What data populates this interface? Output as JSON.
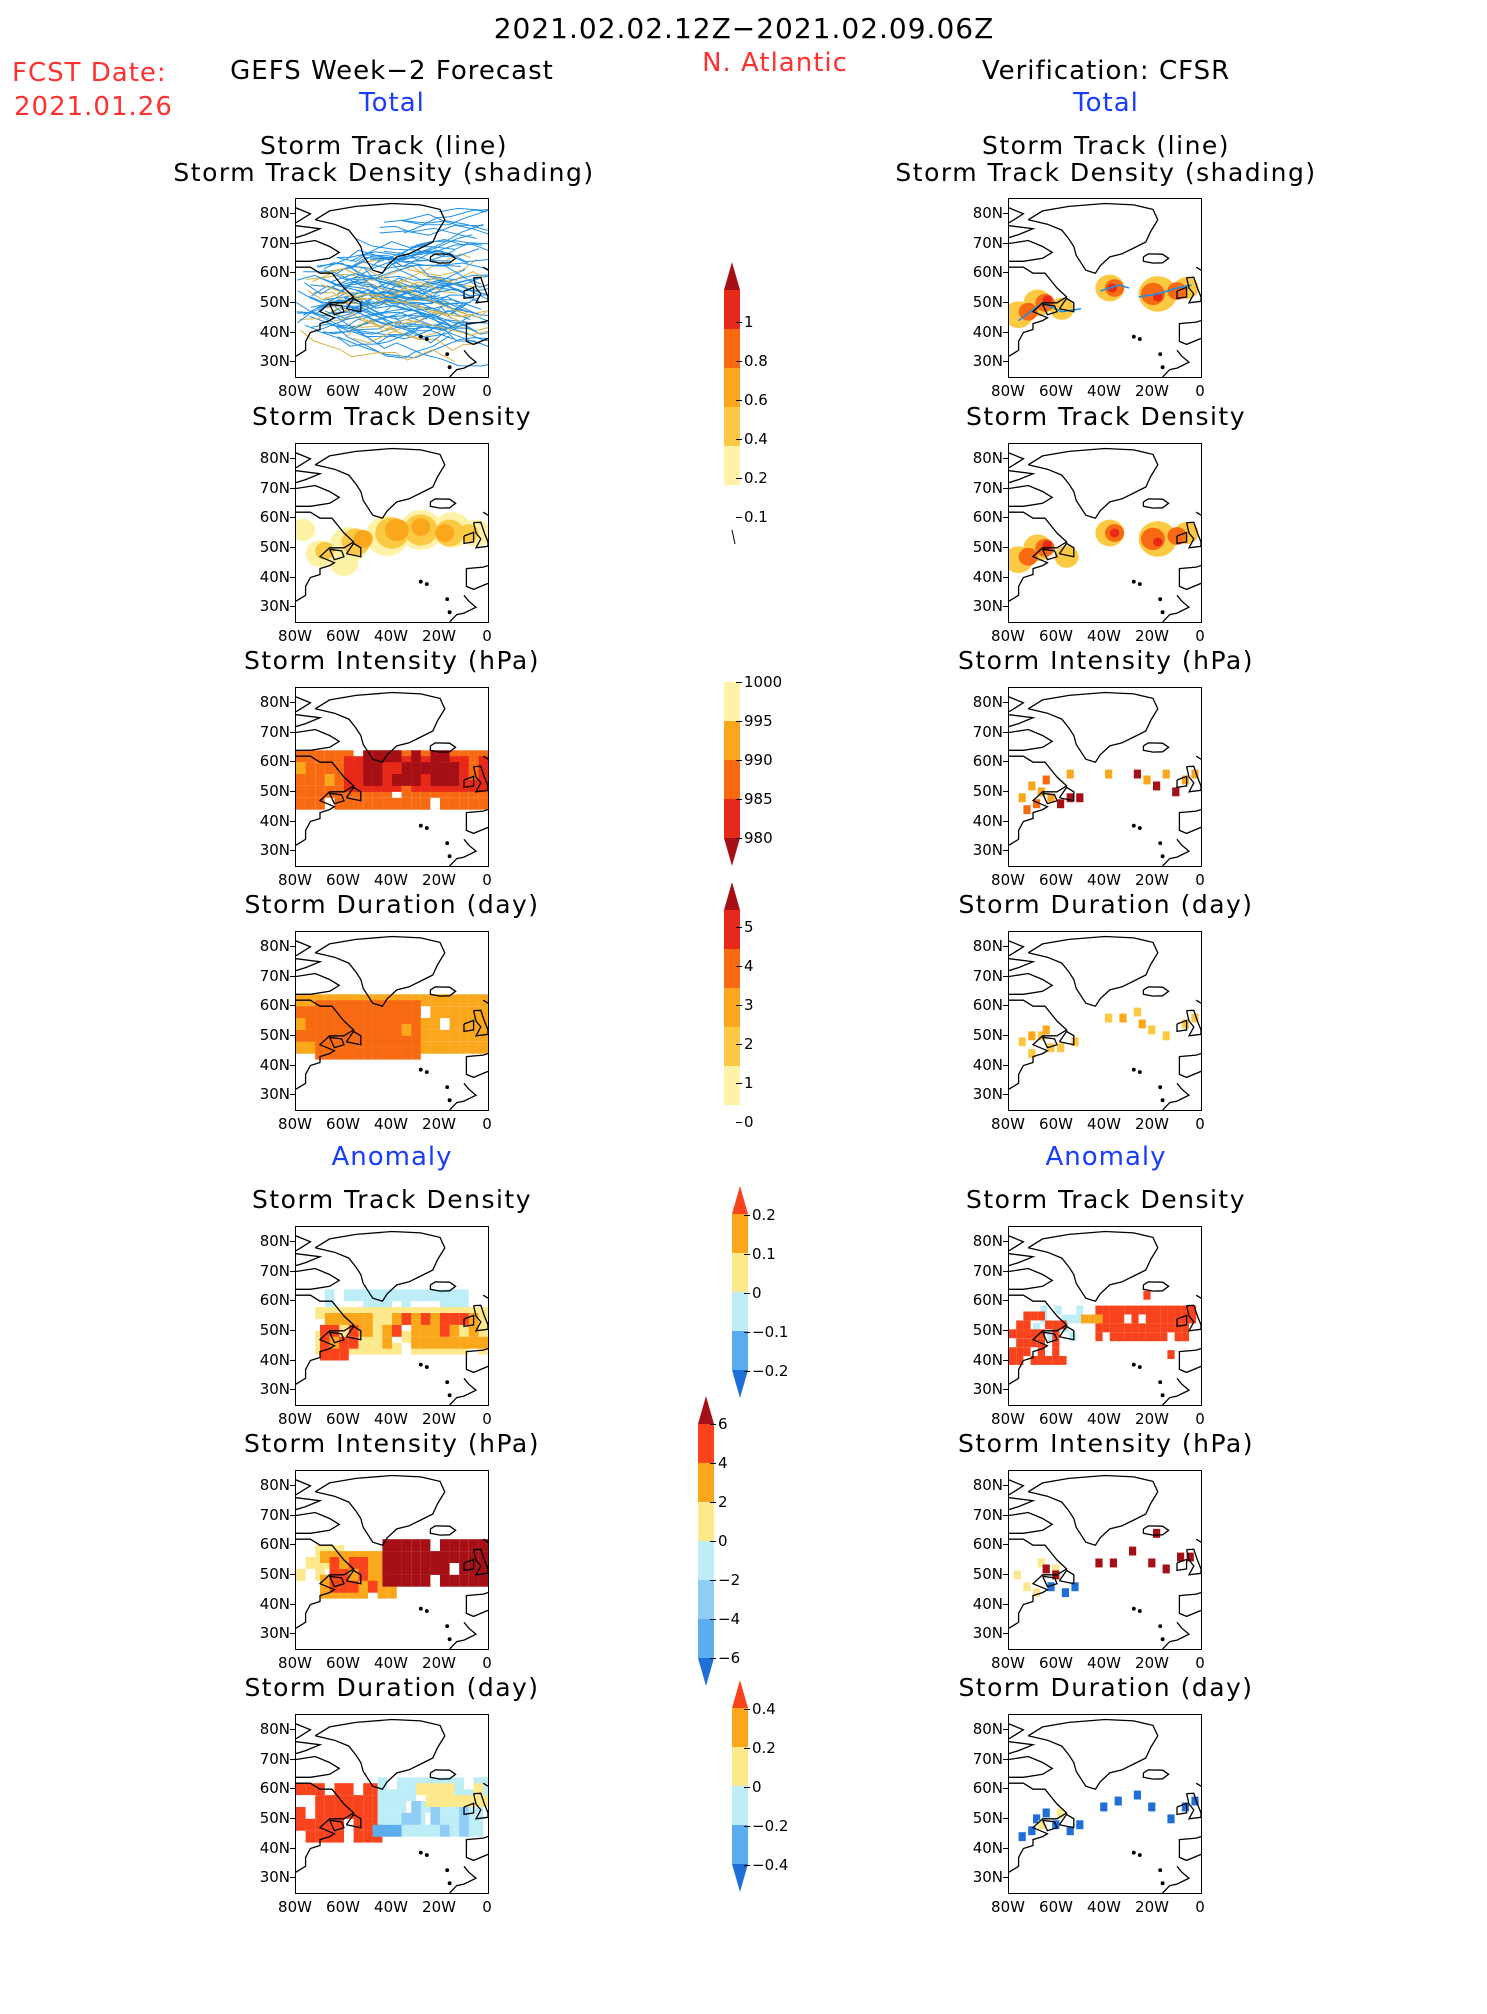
{
  "header": {
    "date_range": "2021.02.02.12Z−2021.02.09.06Z",
    "region": "N. Atlantic",
    "fcst_label": "FCST Date:",
    "fcst_date": "2021.01.26",
    "left_title": "GEFS Week−2 Forecast",
    "right_title": "Verification: CFSR",
    "total_label": "Total",
    "anomaly_label": "Anomaly"
  },
  "panels": {
    "track": {
      "title1": "Storm Track (line)",
      "title2": "Storm Track Density (shading)"
    },
    "density": {
      "title": "Storm Track Density"
    },
    "intensity": {
      "title": "Storm Intensity (hPa)"
    },
    "duration": {
      "title": "Storm Duration (day)"
    }
  },
  "axes": {
    "lat_labels": [
      "80N",
      "70N",
      "60N",
      "50N",
      "40N",
      "30N"
    ],
    "lon_labels": [
      "80W",
      "60W",
      "40W",
      "20W",
      "0"
    ]
  },
  "colorbars": {
    "density_total": {
      "labels": [
        "1",
        "0.8",
        "0.6",
        "0.4",
        "0.2",
        "0.1"
      ],
      "colors": [
        "#a50f15",
        "#e8291a",
        "#f86a12",
        "#fba71c",
        "#fcc943",
        "#fdf2a6"
      ]
    },
    "intensity_total": {
      "labels": [
        "1000",
        "995",
        "990",
        "985",
        "980"
      ],
      "colors": [
        "#fdf2a6",
        "#fba71c",
        "#f86a12",
        "#e8291a",
        "#a50f15"
      ]
    },
    "duration_total": {
      "labels": [
        "5",
        "4",
        "3",
        "2",
        "1",
        "0"
      ],
      "colors": [
        "#a50f15",
        "#e8291a",
        "#f86a12",
        "#fba71c",
        "#fcc943",
        "#fdf2a6"
      ]
    },
    "density_anom": {
      "labels": [
        "0.2",
        "0.1",
        "0",
        "−0.1",
        "−0.2"
      ],
      "colors": [
        "#f8431c",
        "#fba71c",
        "#fde98c",
        "#bdeef8",
        "#5aaef0",
        "#1e6fd8"
      ]
    },
    "intensity_anom": {
      "labels": [
        "6",
        "4",
        "2",
        "0",
        "−2",
        "−4",
        "−6"
      ],
      "colors": [
        "#a50f15",
        "#f8431c",
        "#fba71c",
        "#fde98c",
        "#bdeef8",
        "#90cdf5",
        "#5aaef0",
        "#1e6fd8"
      ]
    },
    "duration_anom": {
      "labels": [
        "0.4",
        "0.2",
        "0",
        "−0.2",
        "−0.4"
      ],
      "colors": [
        "#f8431c",
        "#fba71c",
        "#fde98c",
        "#bdeef8",
        "#5aaef0",
        "#1e6fd8"
      ]
    }
  },
  "colors": {
    "track_line": "#1e90e6",
    "track_line_alt": "#d8b24a"
  }
}
